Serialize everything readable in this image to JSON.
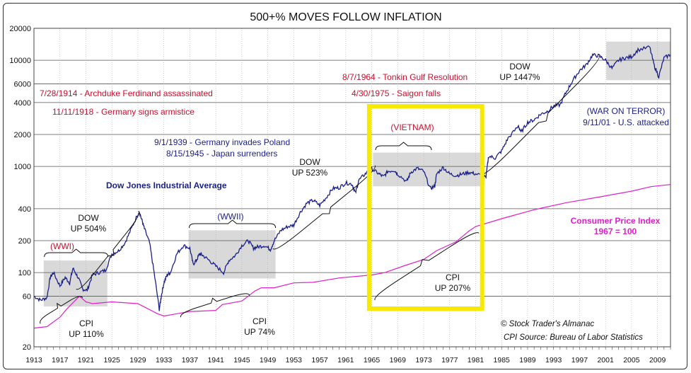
{
  "chart_data": {
    "type": "line",
    "title": "500+% MOVES FOLLOW INFLATION",
    "yscale": "log",
    "ylim": [
      20,
      20000
    ],
    "xlim": [
      1913,
      2011
    ],
    "y_ticks": [
      20000,
      10000,
      6000,
      4000,
      2000,
      1000,
      400,
      200,
      100,
      60,
      20
    ],
    "x_ticks": [
      "1913",
      "1917",
      "1921",
      "1925",
      "1929",
      "1933",
      "1937",
      "1941",
      "1945",
      "1949",
      "1953",
      "1957",
      "1961",
      "1965",
      "1969",
      "1973",
      "1977",
      "1981",
      "1985",
      "1989",
      "1993",
      "1997",
      "2001",
      "2005",
      "2009"
    ],
    "series": [
      {
        "name": "Dow Jones Industrial Average",
        "color": "#1b1f8a",
        "x": [
          1913,
          1914,
          1915,
          1915.5,
          1916,
          1917,
          1917.8,
          1918.5,
          1919,
          1919.8,
          1920.5,
          1921.2,
          1922,
          1923,
          1924,
          1925,
          1926,
          1927,
          1928,
          1929.2,
          1929.7,
          1930,
          1930.8,
          1931.5,
          1932.3,
          1932.6,
          1933,
          1933.5,
          1934,
          1935,
          1936,
          1937,
          1937.5,
          1938,
          1938.5,
          1939,
          1940,
          1941,
          1942.2,
          1943,
          1944,
          1945,
          1946,
          1946.8,
          1947.5,
          1948.5,
          1949.4,
          1950,
          1951,
          1952,
          1953,
          1954,
          1955,
          1956,
          1957,
          1958,
          1959,
          1960,
          1961,
          1962,
          1962.5,
          1963,
          1964,
          1965,
          1966,
          1966.8,
          1967.5,
          1968.5,
          1969,
          1970.4,
          1971,
          1972,
          1973,
          1974,
          1974.7,
          1975,
          1976,
          1977,
          1978,
          1979,
          1980,
          1981,
          1982.6,
          1983,
          1984,
          1985,
          1986,
          1987.6,
          1988,
          1989,
          1990,
          1991,
          1992,
          1993,
          1994,
          1995,
          1996,
          1997,
          1998,
          1999,
          2000,
          2001,
          2002,
          2003,
          2004,
          2005,
          2006,
          2007.8,
          2008.5,
          2009.2,
          2010,
          2011
        ],
        "values": [
          60,
          55,
          58,
          90,
          100,
          75,
          90,
          80,
          110,
          90,
          70,
          68,
          95,
          100,
          105,
          150,
          160,
          190,
          260,
          380,
          300,
          260,
          190,
          100,
          45,
          60,
          80,
          95,
          100,
          150,
          180,
          170,
          120,
          130,
          150,
          145,
          130,
          115,
          100,
          130,
          145,
          180,
          200,
          170,
          175,
          180,
          165,
          200,
          250,
          270,
          280,
          370,
          450,
          480,
          430,
          510,
          620,
          630,
          700,
          680,
          560,
          740,
          850,
          950,
          860,
          800,
          900,
          920,
          850,
          720,
          880,
          960,
          900,
          620,
          650,
          850,
          980,
          850,
          820,
          850,
          880,
          850,
          800,
          1250,
          1200,
          1400,
          1850,
          2400,
          2100,
          2600,
          2750,
          3100,
          3300,
          3700,
          3800,
          5100,
          6500,
          8000,
          9000,
          11200,
          11000,
          10000,
          8400,
          10000,
          10500,
          10800,
          12500,
          13300,
          8900,
          7000,
          10500,
          11300
        ],
        "dates": []
      },
      {
        "name": "Consumer Price Index 1967 = 100",
        "color": "#e020c8",
        "x": [
          1913,
          1915,
          1917,
          1918,
          1919,
          1920,
          1921,
          1922,
          1925,
          1929,
          1932,
          1933,
          1937,
          1941,
          1942,
          1945,
          1946,
          1947,
          1948,
          1950,
          1953,
          1956,
          1960,
          1965,
          1967,
          1970,
          1973,
          1975,
          1978,
          1980,
          1981,
          1985,
          1990,
          1995,
          2000,
          2005,
          2008,
          2011
        ],
        "values": [
          30,
          31,
          38,
          45,
          52,
          60,
          53,
          51,
          53,
          51,
          41,
          39,
          43,
          44,
          50,
          54,
          60,
          67,
          72,
          72,
          80,
          81,
          89,
          95,
          100,
          116,
          133,
          161,
          195,
          247,
          272,
          322,
          391,
          456,
          515,
          585,
          645,
          676
        ],
        "dates": []
      }
    ],
    "annotations": {
      "dow_label": "Dow Jones Industrial Average",
      "cpi_label_1": "Consumer Price Index",
      "cpi_label_2": "1967 = 100",
      "dow_up_504_a": "DOW",
      "dow_up_504_b": "UP 504%",
      "dow_up_523_a": "DOW",
      "dow_up_523_b": "UP 523%",
      "dow_up_1447_a": "DOW",
      "dow_up_1447_b": "UP 1447%",
      "cpi_110_a": "CPI",
      "cpi_110_b": "UP 110%",
      "cpi_74_a": "CPI",
      "cpi_74_b": "UP 74%",
      "cpi_207_a": "CPI",
      "cpi_207_b": "UP 207%",
      "wwi": "(WWI)",
      "wwii": "(WWII)",
      "vietnam": "(VIETNAM)",
      "war_on_terror": "(WAR ON TERROR)",
      "event_1914": "7/28/1914 - Archduke Ferdinand assassinated",
      "event_1918": "11/11/1918 - Germany signs armistice",
      "event_1939": "9/1/1939 - Germany invades Poland",
      "event_1945": "8/15/1945 - Japan surrenders",
      "event_1964": "8/7/1964 - Tonkin Gulf Resolution",
      "event_1975": "4/30/1975 - Saigon falls",
      "event_2001": "9/11/01 - U.S. attacked",
      "credit_1": "© Stock Trader's Almanac",
      "credit_2": "CPI Source: Bureau of Labor Statistics"
    },
    "shaded_periods": [
      {
        "name": "WWI",
        "start": 1914.5,
        "end": 1924.3,
        "ymin": 48,
        "ymax": 130
      },
      {
        "name": "WWII",
        "start": 1936.8,
        "end": 1950.2,
        "ymin": 88,
        "ymax": 250
      },
      {
        "name": "Vietnam",
        "start": 1965.2,
        "end": 1982.4,
        "ymin": 650,
        "ymax": 1350
      },
      {
        "name": "War on Terror",
        "start": 2001.1,
        "end": 2011,
        "ymin": 6500,
        "ymax": 15000
      }
    ],
    "highlight": {
      "name": "Vietnam era box",
      "start": 1964.6,
      "end": 1982.0,
      "color": "#f7ea00"
    },
    "colors": {
      "dow": "#1b1f8a",
      "cpi": "#e020c8",
      "event_red": "#c8102e",
      "highlight": "#f7ea00",
      "shade": "#d9d9d9"
    }
  }
}
